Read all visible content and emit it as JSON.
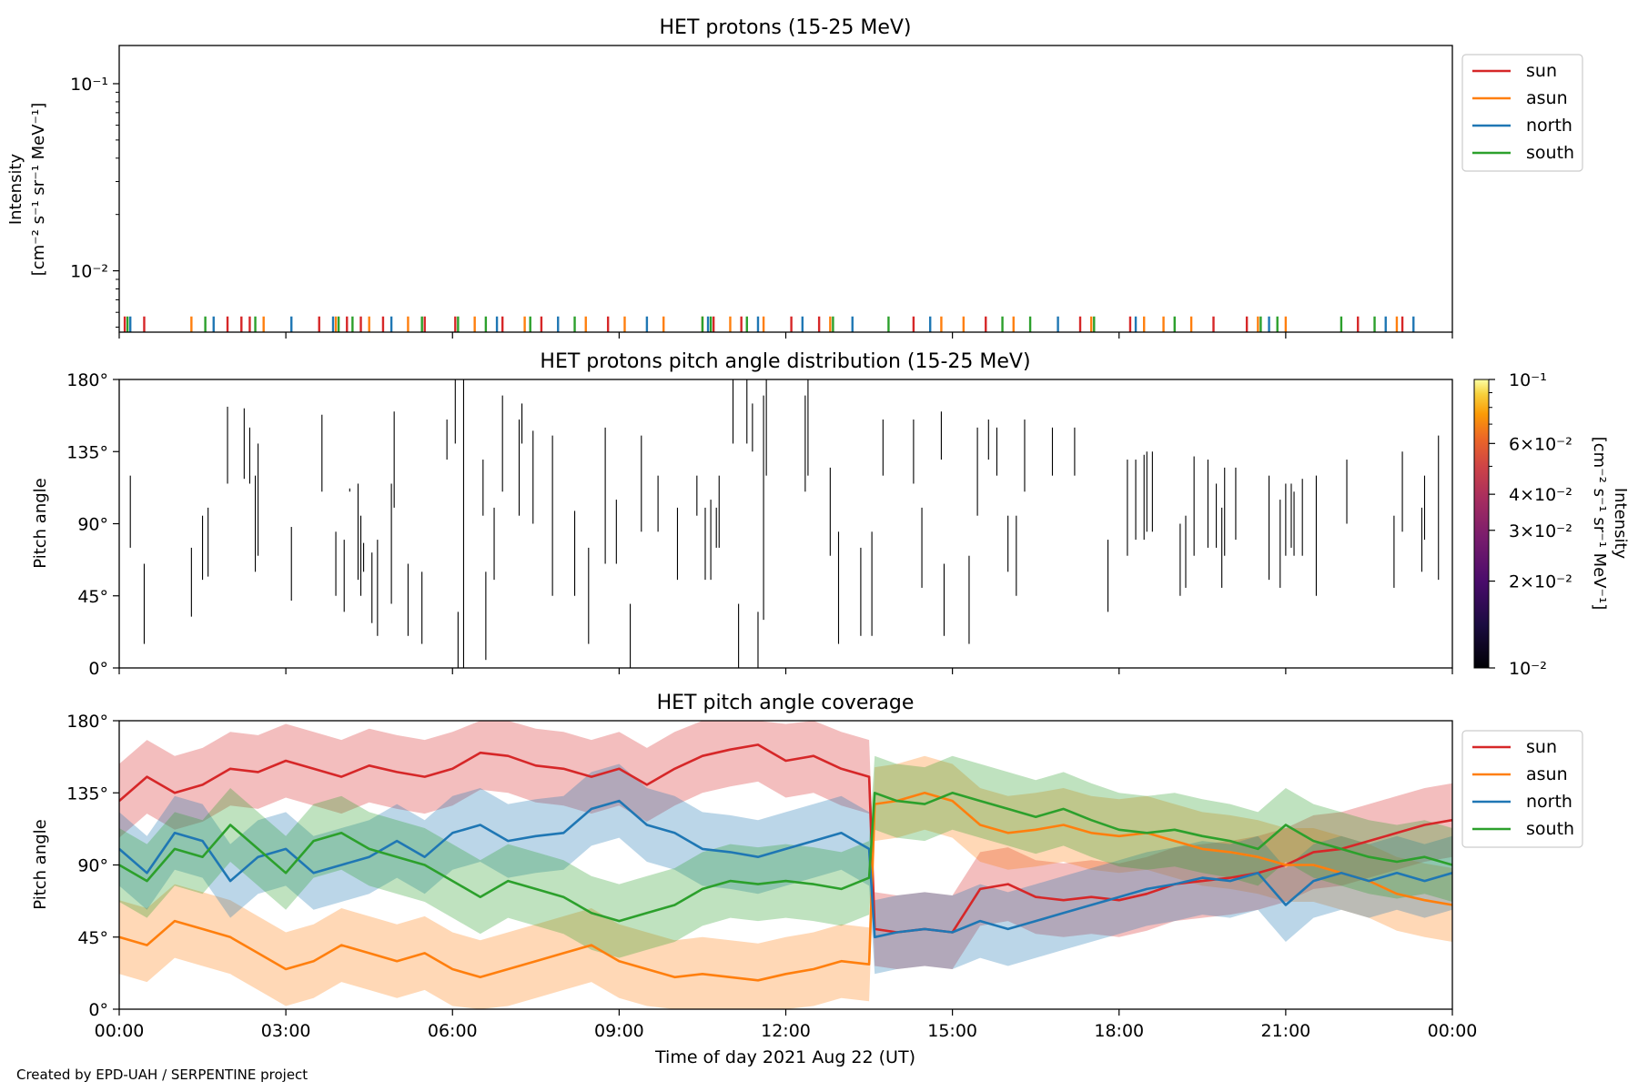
{
  "footer": {
    "credit": "Created by EPD-UAH / SERPENTINE project"
  },
  "xaxis": {
    "label": "Time of day 2021 Aug 22 (UT)",
    "range_hours": [
      0,
      24
    ],
    "ticks": [
      {
        "h": 0,
        "label": "00:00"
      },
      {
        "h": 3,
        "label": "03:00"
      },
      {
        "h": 6,
        "label": "06:00"
      },
      {
        "h": 9,
        "label": "09:00"
      },
      {
        "h": 12,
        "label": "12:00"
      },
      {
        "h": 15,
        "label": "15:00"
      },
      {
        "h": 18,
        "label": "18:00"
      },
      {
        "h": 21,
        "label": "21:00"
      },
      {
        "h": 24,
        "label": "00:00"
      }
    ]
  },
  "colors": {
    "sun": "#d62728",
    "asun": "#ff7f0e",
    "north": "#1f77b4",
    "south": "#2ca02c"
  },
  "chart_data": [
    {
      "type": "line",
      "title": "HET protons (15-25 MeV)",
      "ylabel_line1": "Intensity",
      "ylabel_line2": "[cm⁻² s⁻¹ sr⁻¹ MeV⁻¹]",
      "yscale": "log",
      "ylim": [
        0.0047,
        0.16
      ],
      "ytick_labels": [
        "10⁻¹",
        "10⁻²"
      ],
      "legend": {
        "placement": "upper-right-outside",
        "entries": [
          "sun",
          "asun",
          "north",
          "south"
        ]
      },
      "spike_base": 0.0047,
      "spike_top": 0.0057,
      "series": [
        {
          "name": "sun",
          "times": [
            0.1,
            0.45,
            1.95,
            2.2,
            2.35,
            3.6,
            4.1,
            4.35,
            4.75,
            5.5,
            6.05,
            6.9,
            7.6,
            8.8,
            10.7,
            11.2,
            12.1,
            12.6,
            14.3,
            15.6,
            17.3,
            18.2,
            19.7,
            20.3,
            22.3,
            23.1
          ]
        },
        {
          "name": "asun",
          "times": [
            1.3,
            2.6,
            3.9,
            4.5,
            5.2,
            6.4,
            7.3,
            8.4,
            9.1,
            9.8,
            10.5,
            11.0,
            11.6,
            12.8,
            14.8,
            15.2,
            16.1,
            17.5,
            18.45,
            18.8,
            19.3,
            20.5,
            21.0,
            23.0
          ]
        },
        {
          "name": "north",
          "times": [
            0.2,
            1.7,
            3.1,
            3.85,
            4.9,
            6.8,
            7.9,
            9.5,
            10.6,
            11.5,
            12.3,
            13.2,
            14.6,
            16.9,
            18.3,
            20.7,
            22.8,
            23.3
          ]
        },
        {
          "name": "south",
          "times": [
            0.15,
            1.55,
            2.45,
            3.95,
            4.2,
            5.45,
            6.1,
            6.6,
            7.4,
            8.2,
            10.5,
            10.65,
            11.3,
            12.85,
            13.85,
            15.9,
            16.4,
            17.55,
            19.0,
            20.55,
            20.85,
            22.0,
            22.6
          ]
        }
      ]
    },
    {
      "type": "heatmap",
      "title": "HET protons pitch angle distribution (15-25 MeV)",
      "ylabel": "Pitch angle",
      "ylim": [
        0,
        180
      ],
      "ytick_labels": [
        "180°",
        "135°",
        "90°",
        "45°",
        "0°"
      ],
      "ytick_values": [
        180,
        135,
        90,
        45,
        0
      ],
      "colorbar": {
        "label_line1": "Intensity",
        "label_line2": "[cm⁻² s⁻¹ sr⁻¹ MeV⁻¹]",
        "scale": "log",
        "range": [
          0.01,
          0.1
        ],
        "colormap": "inferno",
        "ticks": [
          {
            "value": 0.1,
            "label": "10⁻¹"
          },
          {
            "value": 0.06,
            "label": "6×10⁻²"
          },
          {
            "value": 0.04,
            "label": "4×10⁻²"
          },
          {
            "value": 0.03,
            "label": "3×10⁻²"
          },
          {
            "value": 0.02,
            "label": "2×10⁻²"
          },
          {
            "value": 0.01,
            "label": "10⁻²"
          }
        ]
      },
      "bins": [
        [
          0.2,
          75,
          120
        ],
        [
          0.45,
          15,
          65
        ],
        [
          1.3,
          32,
          75
        ],
        [
          1.5,
          55,
          95
        ],
        [
          1.6,
          57,
          100
        ],
        [
          1.95,
          115,
          163
        ],
        [
          2.25,
          118,
          162
        ],
        [
          2.35,
          115,
          150
        ],
        [
          2.45,
          60,
          120
        ],
        [
          2.5,
          70,
          140
        ],
        [
          3.1,
          42,
          88
        ],
        [
          3.65,
          110,
          158
        ],
        [
          3.9,
          45,
          85
        ],
        [
          4.05,
          35,
          80
        ],
        [
          4.15,
          110,
          112
        ],
        [
          4.3,
          55,
          115
        ],
        [
          4.35,
          45,
          95
        ],
        [
          4.4,
          60,
          78
        ],
        [
          4.55,
          28,
          72
        ],
        [
          4.65,
          20,
          80
        ],
        [
          4.9,
          40,
          115
        ],
        [
          4.95,
          100,
          160
        ],
        [
          5.2,
          20,
          65
        ],
        [
          5.45,
          15,
          60
        ],
        [
          5.9,
          130,
          155
        ],
        [
          6.05,
          140,
          180
        ],
        [
          6.1,
          0,
          35
        ],
        [
          6.2,
          0,
          180
        ],
        [
          6.6,
          5,
          60
        ],
        [
          6.55,
          95,
          130
        ],
        [
          6.75,
          55,
          100
        ],
        [
          6.9,
          110,
          170
        ],
        [
          7.2,
          95,
          155
        ],
        [
          7.25,
          140,
          165
        ],
        [
          7.45,
          90,
          148
        ],
        [
          7.8,
          45,
          145
        ],
        [
          8.2,
          45,
          98
        ],
        [
          8.45,
          15,
          75
        ],
        [
          8.75,
          65,
          150
        ],
        [
          8.95,
          65,
          105
        ],
        [
          9.2,
          0,
          40
        ],
        [
          9.4,
          85,
          145
        ],
        [
          9.7,
          85,
          120
        ],
        [
          10.05,
          55,
          100
        ],
        [
          10.4,
          95,
          120
        ],
        [
          10.55,
          55,
          100
        ],
        [
          10.65,
          55,
          105
        ],
        [
          10.75,
          75,
          100
        ],
        [
          10.8,
          75,
          120
        ],
        [
          11.15,
          0,
          40
        ],
        [
          11.05,
          140,
          180
        ],
        [
          11.3,
          140,
          180
        ],
        [
          11.4,
          135,
          165
        ],
        [
          11.5,
          0,
          35
        ],
        [
          11.6,
          30,
          170
        ],
        [
          11.65,
          120,
          180
        ],
        [
          12.35,
          110,
          170
        ],
        [
          12.4,
          120,
          180
        ],
        [
          12.8,
          70,
          125
        ],
        [
          12.95,
          15,
          85
        ],
        [
          13.35,
          20,
          75
        ],
        [
          13.55,
          20,
          85
        ],
        [
          13.75,
          120,
          155
        ],
        [
          14.3,
          115,
          155
        ],
        [
          14.45,
          50,
          100
        ],
        [
          14.8,
          130,
          160
        ],
        [
          14.85,
          20,
          65
        ],
        [
          15.3,
          15,
          70
        ],
        [
          15.45,
          95,
          150
        ],
        [
          15.65,
          130,
          155
        ],
        [
          15.8,
          120,
          150
        ],
        [
          16.0,
          60,
          95
        ],
        [
          16.15,
          45,
          95
        ],
        [
          16.3,
          110,
          155
        ],
        [
          16.8,
          120,
          150
        ],
        [
          17.2,
          120,
          150
        ],
        [
          17.8,
          35,
          80
        ],
        [
          18.15,
          70,
          130
        ],
        [
          18.3,
          80,
          130
        ],
        [
          18.45,
          80,
          133
        ],
        [
          18.5,
          85,
          135
        ],
        [
          18.6,
          85,
          135
        ],
        [
          19.1,
          45,
          90
        ],
        [
          19.2,
          50,
          95
        ],
        [
          19.35,
          70,
          132
        ],
        [
          19.6,
          75,
          130
        ],
        [
          19.75,
          75,
          115
        ],
        [
          19.85,
          50,
          100
        ],
        [
          19.9,
          70,
          125
        ],
        [
          20.1,
          80,
          125
        ],
        [
          20.7,
          55,
          120
        ],
        [
          20.9,
          50,
          105
        ],
        [
          21.0,
          70,
          115
        ],
        [
          21.1,
          75,
          115
        ],
        [
          21.15,
          70,
          110
        ],
        [
          21.3,
          70,
          118
        ],
        [
          21.55,
          45,
          120
        ],
        [
          22.1,
          90,
          130
        ],
        [
          22.95,
          50,
          95
        ],
        [
          23.1,
          85,
          135
        ],
        [
          23.45,
          60,
          100
        ],
        [
          23.5,
          80,
          120
        ],
        [
          23.75,
          55,
          145
        ]
      ]
    },
    {
      "type": "line",
      "title": "HET pitch angle coverage",
      "ylabel": "Pitch angle",
      "ylim": [
        0,
        180
      ],
      "ytick_labels": [
        "180°",
        "135°",
        "90°",
        "45°",
        "0°"
      ],
      "ytick_values": [
        180,
        135,
        90,
        45,
        0
      ],
      "legend": {
        "placement": "upper-right-outside",
        "entries": [
          "sun",
          "asun",
          "north",
          "south"
        ]
      },
      "band_halfwidth_deg": 23,
      "series": [
        {
          "name": "sun",
          "x": [
            0,
            0.5,
            1,
            1.5,
            2,
            2.5,
            3,
            3.5,
            4,
            4.5,
            5,
            5.5,
            6,
            6.5,
            7,
            7.5,
            8,
            8.5,
            9,
            9.5,
            10,
            10.5,
            11,
            11.5,
            12,
            12.5,
            13,
            13.5,
            13.6,
            14,
            14.5,
            15,
            15.5,
            16,
            16.5,
            17,
            17.5,
            18,
            18.5,
            19,
            19.5,
            20,
            20.5,
            21,
            21.5,
            22,
            22.5,
            23,
            23.5,
            24
          ],
          "y": [
            130,
            145,
            135,
            140,
            150,
            148,
            155,
            150,
            145,
            152,
            148,
            145,
            150,
            160,
            158,
            152,
            150,
            145,
            150,
            140,
            150,
            158,
            162,
            165,
            155,
            158,
            150,
            145,
            50,
            48,
            50,
            48,
            75,
            78,
            70,
            68,
            70,
            68,
            72,
            78,
            80,
            82,
            85,
            90,
            98,
            100,
            105,
            110,
            115,
            118
          ]
        },
        {
          "name": "asun",
          "x": [
            0,
            0.5,
            1,
            1.5,
            2,
            2.5,
            3,
            3.5,
            4,
            4.5,
            5,
            5.5,
            6,
            6.5,
            7,
            7.5,
            8,
            8.5,
            9,
            9.5,
            10,
            10.5,
            11,
            11.5,
            12,
            12.5,
            13,
            13.5,
            13.6,
            14,
            14.5,
            15,
            15.5,
            16,
            16.5,
            17,
            17.5,
            18,
            18.5,
            19,
            19.5,
            20,
            20.5,
            21,
            21.5,
            22,
            22.5,
            23,
            23.5,
            24
          ],
          "y": [
            45,
            40,
            55,
            50,
            45,
            35,
            25,
            30,
            40,
            35,
            30,
            35,
            25,
            20,
            25,
            30,
            35,
            40,
            30,
            25,
            20,
            22,
            20,
            18,
            22,
            25,
            30,
            28,
            128,
            130,
            135,
            130,
            115,
            110,
            112,
            115,
            110,
            108,
            110,
            105,
            100,
            98,
            95,
            90,
            90,
            85,
            80,
            72,
            68,
            65
          ]
        },
        {
          "name": "north",
          "x": [
            0,
            0.5,
            1,
            1.5,
            2,
            2.5,
            3,
            3.5,
            4,
            4.5,
            5,
            5.5,
            6,
            6.5,
            7,
            7.5,
            8,
            8.5,
            9,
            9.5,
            10,
            10.5,
            11,
            11.5,
            12,
            12.5,
            13,
            13.5,
            13.6,
            14,
            14.5,
            15,
            15.5,
            16,
            16.5,
            17,
            17.5,
            18,
            18.5,
            19,
            19.5,
            20,
            20.5,
            21,
            21.5,
            22,
            22.5,
            23,
            23.5,
            24
          ],
          "y": [
            100,
            85,
            110,
            105,
            80,
            95,
            100,
            85,
            90,
            95,
            105,
            95,
            110,
            115,
            105,
            108,
            110,
            125,
            130,
            115,
            110,
            100,
            98,
            95,
            100,
            105,
            110,
            100,
            45,
            48,
            50,
            48,
            55,
            50,
            55,
            60,
            65,
            70,
            75,
            78,
            82,
            80,
            85,
            65,
            80,
            85,
            80,
            85,
            80,
            85
          ]
        },
        {
          "name": "south",
          "x": [
            0,
            0.5,
            1,
            1.5,
            2,
            2.5,
            3,
            3.5,
            4,
            4.5,
            5,
            5.5,
            6,
            6.5,
            7,
            7.5,
            8,
            8.5,
            9,
            9.5,
            10,
            10.5,
            11,
            11.5,
            12,
            12.5,
            13,
            13.5,
            13.6,
            14,
            14.5,
            15,
            15.5,
            16,
            16.5,
            17,
            17.5,
            18,
            18.5,
            19,
            19.5,
            20,
            20.5,
            21,
            21.5,
            22,
            22.5,
            23,
            23.5,
            24
          ],
          "y": [
            90,
            80,
            100,
            95,
            115,
            100,
            85,
            105,
            110,
            100,
            95,
            90,
            80,
            70,
            80,
            75,
            70,
            60,
            55,
            60,
            65,
            75,
            80,
            78,
            80,
            78,
            75,
            82,
            135,
            130,
            128,
            135,
            130,
            125,
            120,
            125,
            118,
            112,
            110,
            112,
            108,
            105,
            100,
            115,
            105,
            100,
            95,
            92,
            95,
            90
          ]
        }
      ]
    }
  ]
}
